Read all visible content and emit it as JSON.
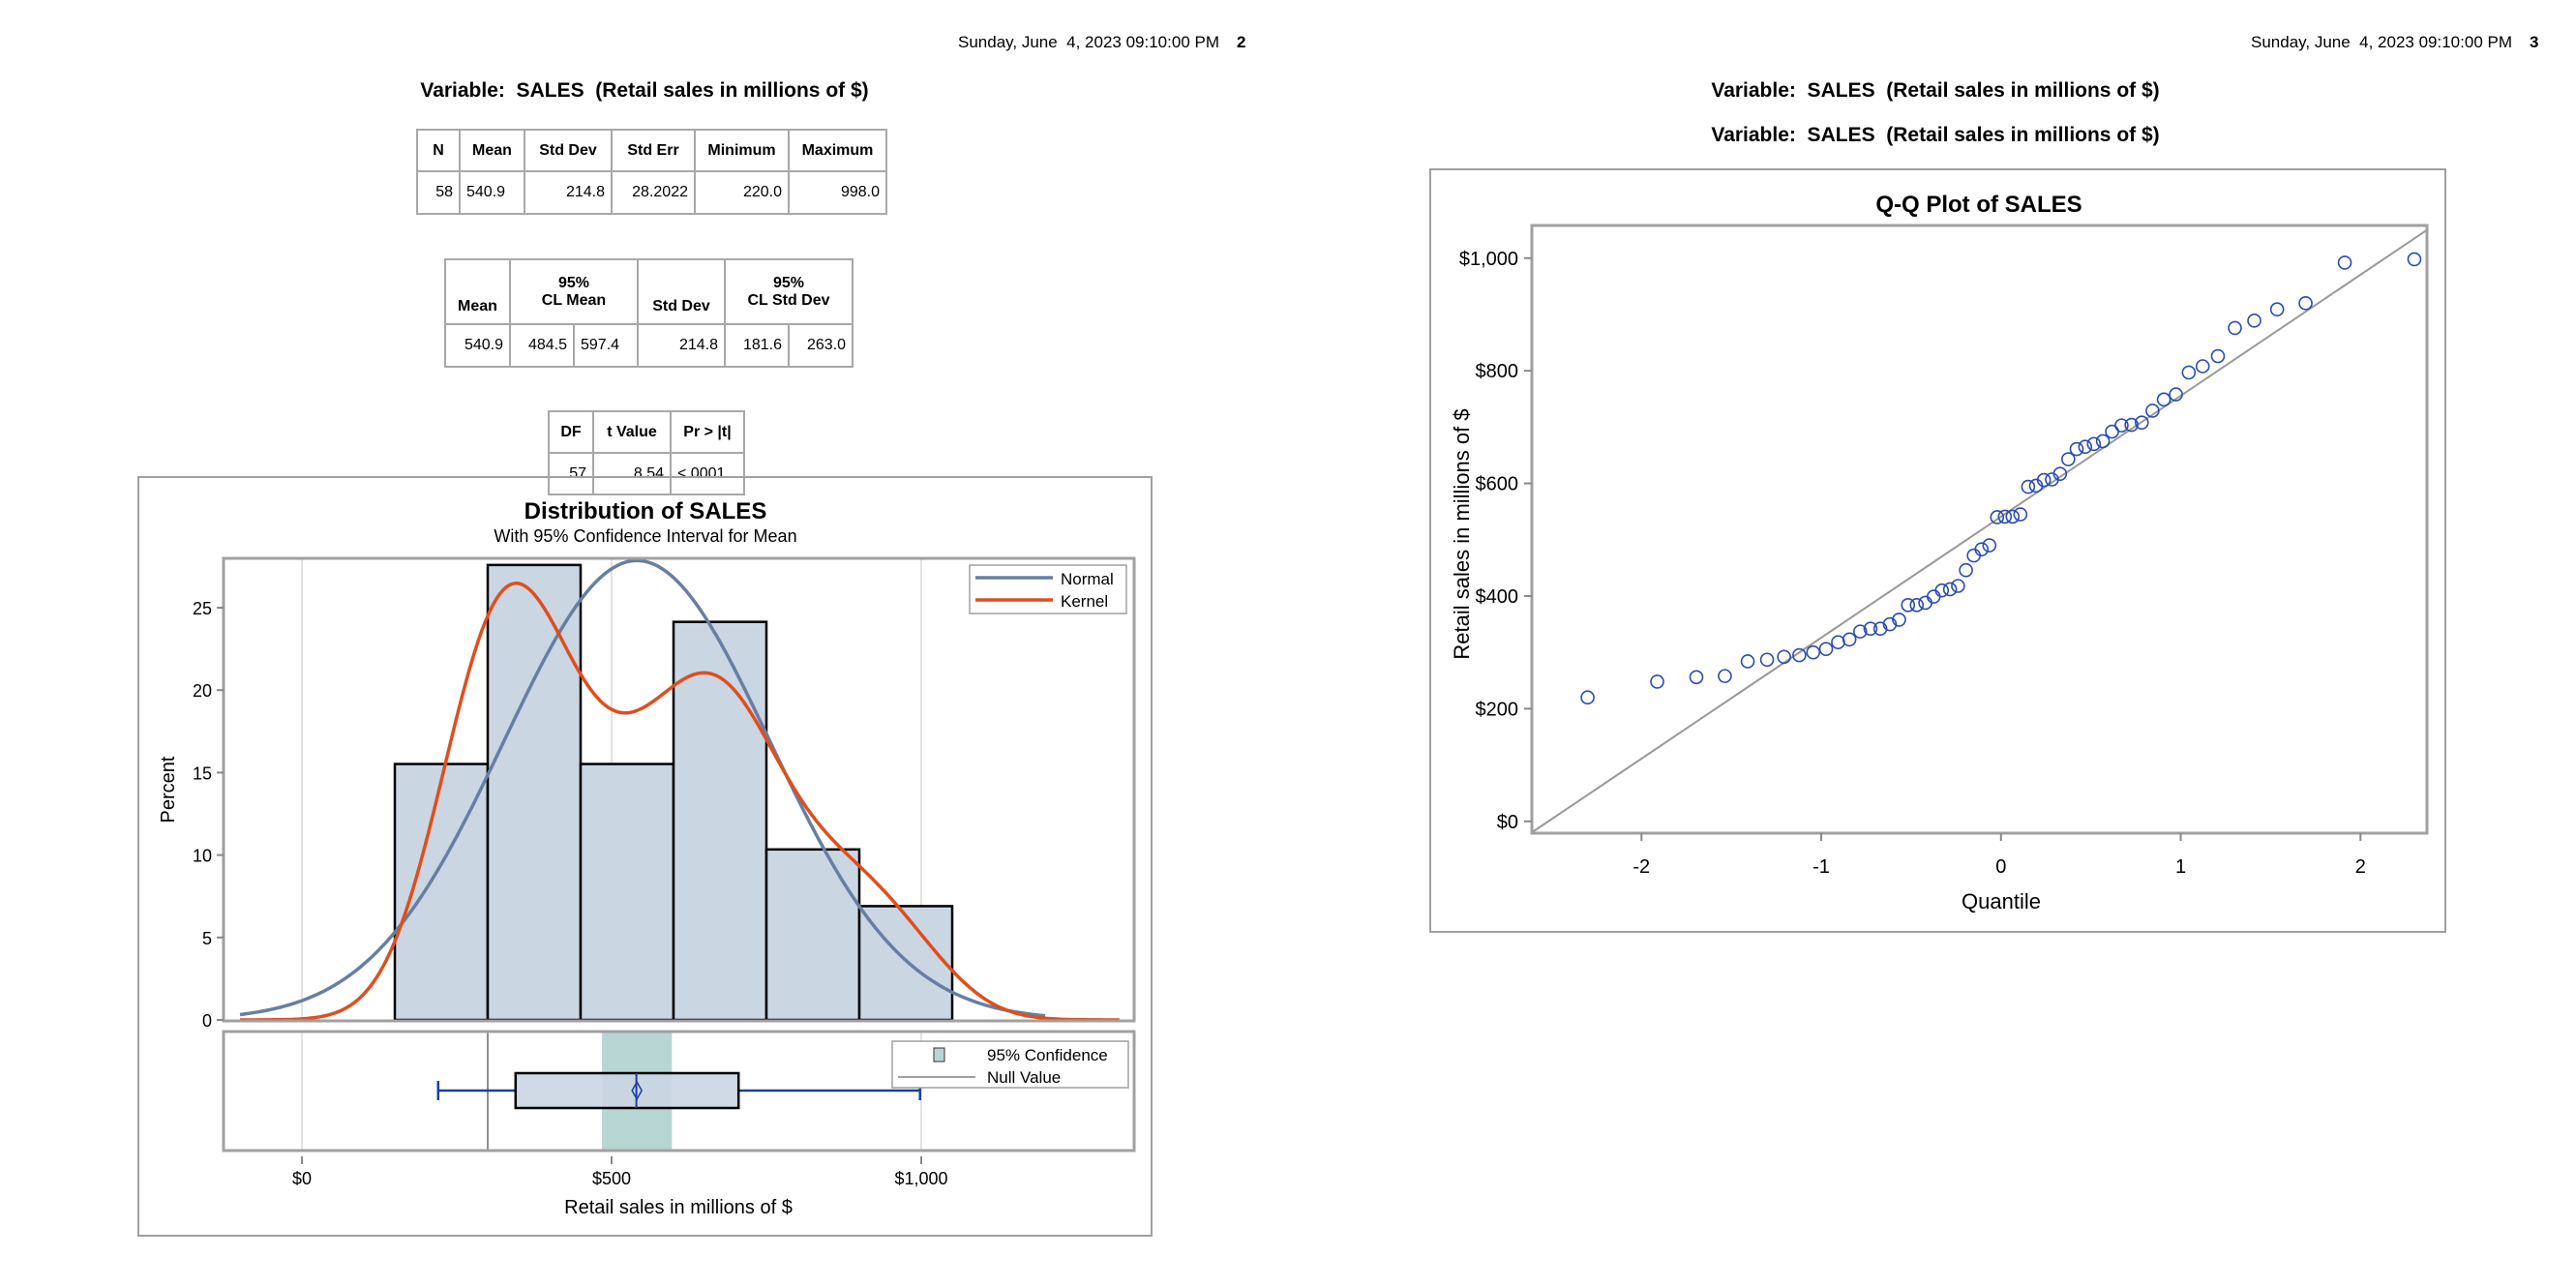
{
  "page2": {
    "header_date": "Sunday, June  4, 2023 09:10:00 PM",
    "page_number": "2",
    "variable_title": "Variable:  SALES  (Retail sales in millions of $)",
    "summary_table": {
      "headers": [
        "N",
        "Mean",
        "Std Dev",
        "Std Err",
        "Minimum",
        "Maximum"
      ],
      "row": [
        "58",
        "540.9",
        "214.8",
        "28.2022",
        "220.0",
        "998.0"
      ]
    },
    "ci_table": {
      "headers": [
        "Mean",
        "95%\nCL Mean",
        "Std Dev",
        "95%\nCL Std Dev"
      ],
      "header_mean": "Mean",
      "header_clmean_1": "95%",
      "header_clmean_2": "CL Mean",
      "header_sd": "Std Dev",
      "header_clsd_1": "95%",
      "header_clsd_2": "CL Std Dev",
      "row": [
        "540.9",
        "484.5",
        "597.4",
        "214.8",
        "181.6",
        "263.0"
      ]
    },
    "ttest_table": {
      "headers": [
        "DF",
        "t Value",
        "Pr > |t|"
      ],
      "row": [
        "57",
        "8.54",
        "<.0001"
      ]
    }
  },
  "page3": {
    "header_date": "Sunday, June  4, 2023 09:10:00 PM",
    "page_number": "3",
    "variable_title_1": "Variable:  SALES  (Retail sales in millions of $)",
    "variable_title_2": "Variable:  SALES  (Retail sales in millions of $)"
  },
  "chart_data": [
    {
      "type": "bar",
      "title": "Distribution of SALES",
      "subtitle": "With 95% Confidence Interval for Mean",
      "xlabel": "Retail sales in millions of $",
      "ylabel": "Percent",
      "bin_edges": [
        150,
        300,
        450,
        600,
        750,
        900,
        1050
      ],
      "values": [
        15.52,
        27.59,
        15.52,
        24.14,
        10.34,
        6.9
      ],
      "xlim": [
        -125,
        1325
      ],
      "ylim": [
        0,
        28
      ],
      "xticks": [
        0,
        500,
        1000
      ],
      "xtick_labels": [
        "$0",
        "$500",
        "$1,000"
      ],
      "yticks": [
        0,
        5,
        10,
        15,
        20,
        25
      ],
      "ytick_labels": [
        "0",
        "5",
        "10",
        "15",
        "20",
        "25"
      ],
      "normal": {
        "name": "Normal",
        "mean": 540.9,
        "sd": 214.8,
        "color": "#667fa2"
      },
      "kernel": {
        "name": "Kernel",
        "bandwidth": 80,
        "color": "#e04e1c"
      },
      "legend_position": "top-right",
      "boxplot": {
        "min": 220,
        "q1": 345,
        "median": 540,
        "mean": 540.9,
        "q3": 705,
        "max": 998,
        "ci_lower": 484.5,
        "ci_upper": 597.4,
        "null_value": 300,
        "legend": [
          "95% Confidence",
          "Null Value"
        ],
        "ci_color": "#b7d5d3"
      },
      "bar_color": "#cbd6e3"
    },
    {
      "type": "scatter",
      "title": "Q-Q Plot of SALES",
      "xlabel": "Quantile",
      "ylabel": "Retail sales in millions of $",
      "xlim": [
        -2.61,
        2.37
      ],
      "ylim": [
        -21,
        1058
      ],
      "xticks": [
        -2,
        -1,
        0,
        1,
        2
      ],
      "xtick_labels": [
        "-2",
        "-1",
        "0",
        "1",
        "2"
      ],
      "yticks": [
        0,
        200,
        400,
        600,
        800,
        1000
      ],
      "ytick_labels": [
        "$0",
        "$200",
        "$400",
        "$600",
        "$800",
        "$1,000"
      ],
      "reference_line": {
        "intercept": 540.9,
        "slope": 214.8
      },
      "sales_sorted": [
        220,
        248,
        256,
        258,
        284,
        287,
        292,
        295,
        300,
        306,
        318,
        323,
        337,
        342,
        342,
        350,
        358,
        384,
        384,
        388,
        399,
        410,
        412,
        418,
        446,
        472,
        483,
        490,
        540,
        541,
        541,
        545,
        594,
        596,
        606,
        607,
        617,
        643,
        661,
        665,
        670,
        675,
        692,
        703,
        704,
        708,
        729,
        749,
        758,
        797,
        808,
        826,
        876,
        889,
        909,
        920,
        992,
        998
      ],
      "marker_color": "#2a4bb0"
    }
  ]
}
